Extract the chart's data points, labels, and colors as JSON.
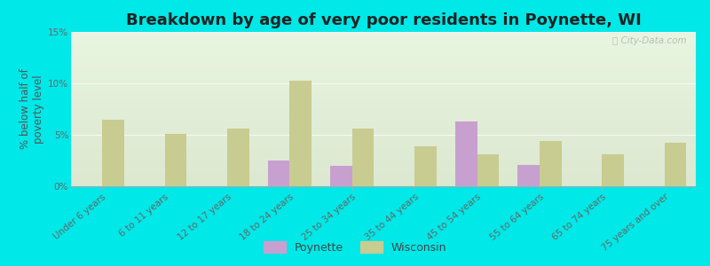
{
  "title": "Breakdown by age of very poor residents in Poynette, WI",
  "ylabel": "% below half of\npoverty level",
  "categories": [
    "Under 6 years",
    "6 to 11 years",
    "12 to 17 years",
    "18 to 24 years",
    "25 to 34 years",
    "35 to 44 years",
    "45 to 54 years",
    "55 to 64 years",
    "65 to 74 years",
    "75 years and over"
  ],
  "poynette": [
    0,
    0,
    0,
    2.5,
    2.0,
    0,
    6.3,
    2.1,
    0,
    0
  ],
  "wisconsin": [
    6.5,
    5.1,
    5.6,
    10.3,
    5.6,
    3.9,
    3.1,
    4.4,
    3.1,
    4.2
  ],
  "poynette_color": "#c8a0d0",
  "wisconsin_color": "#c8cc90",
  "background_color": "#00e8e8",
  "plot_bg_top": "#dce8d0",
  "plot_bg_bottom": "#e8f5e0",
  "title_fontsize": 13,
  "axis_label_fontsize": 8.5,
  "tick_fontsize": 7.5,
  "ylim": [
    0,
    15
  ],
  "yticks": [
    0,
    5,
    10,
    15
  ],
  "ytick_labels": [
    "0%",
    "5%",
    "10%",
    "15%"
  ],
  "bar_width": 0.35,
  "legend_labels": [
    "Poynette",
    "Wisconsin"
  ],
  "watermark": "ⓘ City-Data.com"
}
